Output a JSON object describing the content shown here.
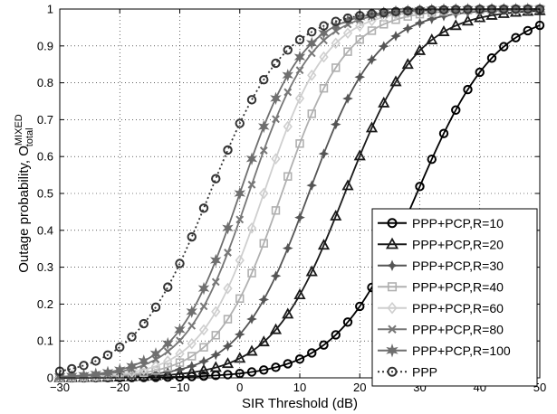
{
  "chart_data": {
    "type": "line",
    "xlabel": "SIR Threshold (dB)",
    "ylabel_main": "Outage probability, O",
    "ylabel_sup": "MIXED",
    "ylabel_sub": "total",
    "xlim": [
      -30,
      50
    ],
    "ylim": [
      0,
      1
    ],
    "xticks": [
      -30,
      -20,
      -10,
      0,
      10,
      20,
      30,
      40,
      50
    ],
    "yticks": [
      0,
      0.1,
      0.2,
      0.3,
      0.4,
      0.5,
      0.6,
      0.7,
      0.8,
      0.9,
      1
    ],
    "grid": true,
    "legend_position": "bottom-right",
    "x_step": 2,
    "series": [
      {
        "name": "PPP+PCP,R=10",
        "color": "#000000",
        "marker": "circle",
        "dash": "",
        "mid": 29.5,
        "slope": 0.15,
        "floor": 0.0
      },
      {
        "name": "PPP+PCP,R=20",
        "color": "#1a1a1a",
        "marker": "triangle",
        "dash": "",
        "mid": 17.5,
        "slope": 0.165,
        "floor": 0.0
      },
      {
        "name": "PPP+PCP,R=30",
        "color": "#555555",
        "marker": "star4",
        "dash": "",
        "mid": 11.5,
        "slope": 0.175,
        "floor": 0.0
      },
      {
        "name": "PPP+PCP,R=40",
        "color": "#b0b0b0",
        "marker": "square",
        "dash": "",
        "mid": 7.0,
        "slope": 0.185,
        "floor": 0.0
      },
      {
        "name": "PPP+PCP,R=60",
        "color": "#cfcfcf",
        "marker": "diamond",
        "dash": "",
        "mid": 4.0,
        "slope": 0.19,
        "floor": 0.0
      },
      {
        "name": "PPP+PCP,R=80",
        "color": "#777777",
        "marker": "x",
        "dash": "",
        "mid": 1.5,
        "slope": 0.19,
        "floor": 0.0
      },
      {
        "name": "PPP+PCP,R=100",
        "color": "#6f6f6f",
        "marker": "star",
        "dash": "",
        "mid": 0.0,
        "slope": 0.19,
        "floor": 0.0
      },
      {
        "name": "PPP",
        "color": "#333333",
        "marker": "circle",
        "dash": "2,3",
        "mid": -5.0,
        "slope": 0.16,
        "floor": 0.0
      }
    ]
  }
}
